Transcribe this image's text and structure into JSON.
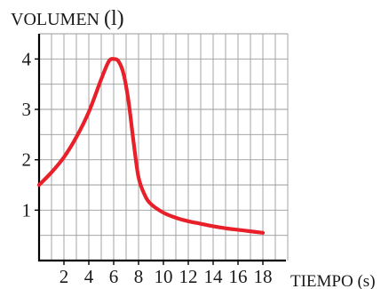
{
  "chart_data": {
    "type": "line",
    "title": "",
    "ylabel_caps": "VOLUMEN",
    "ylabel_unit": "(l)",
    "xlabel": "TIEMPO (s)",
    "xlim": [
      0,
      20
    ],
    "ylim": [
      0,
      4.5
    ],
    "x_ticks": [
      2,
      4,
      6,
      8,
      10,
      12,
      14,
      16,
      18
    ],
    "y_ticks": [
      1,
      2,
      3,
      4
    ],
    "grid": true,
    "line_color": "#e8202a",
    "series": [
      {
        "x": [
          0,
          1,
          2,
          3,
          4,
          5,
          5.6,
          6,
          6.4,
          6.8,
          7.2,
          7.6,
          8,
          8.5,
          9,
          10,
          11,
          12,
          13,
          14,
          15,
          16,
          17,
          18
        ],
        "y": [
          1.5,
          1.75,
          2.05,
          2.45,
          2.95,
          3.6,
          3.95,
          4.0,
          3.95,
          3.7,
          3.15,
          2.35,
          1.65,
          1.3,
          1.12,
          0.95,
          0.85,
          0.78,
          0.73,
          0.68,
          0.64,
          0.61,
          0.58,
          0.55
        ]
      }
    ]
  }
}
